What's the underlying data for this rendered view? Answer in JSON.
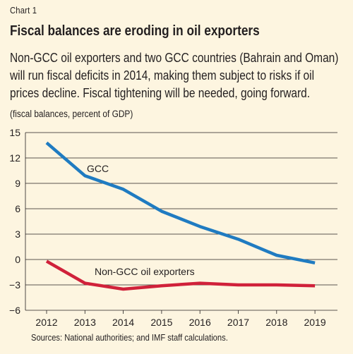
{
  "header": {
    "label": "Chart 1",
    "title": "Fiscal balances are eroding in oil exporters",
    "subtitle": "Non-GCC oil exporters and two GCC countries (Bahrain and Oman) will run fiscal deficits in 2014, making them subject to risks if oil prices decline. Fiscal tightening will be needed, going forward.",
    "unit": "(fiscal balances, percent of GDP)"
  },
  "footer": {
    "source": "Sources: National authorities; and IMF staff calculations."
  },
  "colors": {
    "background": "#fdf5e0",
    "gcc": "#1f7bc1",
    "non_gcc": "#d0213a",
    "grid": "#231f20"
  },
  "chart_data": {
    "type": "line",
    "x": [
      "2012",
      "2013",
      "2014",
      "2015",
      "2016",
      "2017",
      "2018",
      "2019"
    ],
    "ylim": [
      -6,
      15
    ],
    "yticks": [
      "15",
      "12",
      "9",
      "6",
      "3",
      "0",
      "−3",
      "−6"
    ],
    "grid": true,
    "series": [
      {
        "name": "GCC",
        "color": "#1f7bc1",
        "values": [
          13.8,
          9.9,
          8.3,
          5.7,
          3.9,
          2.4,
          0.5,
          -0.4
        ]
      },
      {
        "name": "Non-GCC oil exporters",
        "color": "#d0213a",
        "values": [
          -0.2,
          -2.8,
          -3.5,
          -3.1,
          -2.8,
          -3.0,
          -3.0,
          -3.1
        ]
      }
    ]
  }
}
